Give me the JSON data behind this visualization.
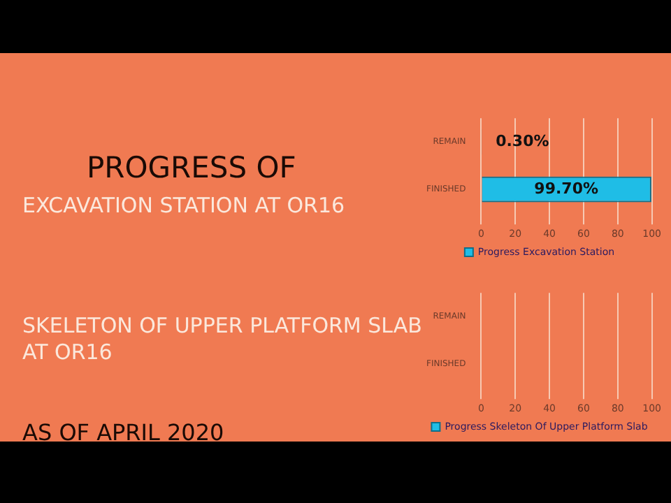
{
  "chart_data": [
    {
      "type": "other",
      "title": "PROGRESS OF",
      "annotations": [
        "AS OF APRIL 2020"
      ]
    },
    {
      "type": "bar",
      "title": "EXCAVATION STATION AT OR16",
      "orientation": "horizontal",
      "categories": [
        "REMAIN",
        "FINISHED"
      ],
      "series": [
        {
          "name": "Progress Excavation Station",
          "color": "#1fbde6",
          "values": [
            0.3,
            99.7
          ],
          "value_labels": [
            "0.30%",
            "99.70%"
          ]
        }
      ],
      "xlim": [
        0,
        100
      ],
      "xticks": [
        0,
        20,
        40,
        60,
        80,
        100
      ],
      "grid": "x",
      "legend": "bottom"
    },
    {
      "type": "bar",
      "title": "SKELETON OF UPPER PLATFORM SLAB AT OR16",
      "orientation": "horizontal",
      "categories": [
        "REMAIN",
        "FINISHED"
      ],
      "series": [
        {
          "name": "Progress Skeleton Of Upper Platform Slab",
          "color": "#1fbde6",
          "values": [
            null,
            null
          ]
        }
      ],
      "xlim": [
        0,
        100
      ],
      "xticks": [
        0,
        20,
        40,
        60,
        80,
        100
      ],
      "grid": "x",
      "legend": "bottom"
    }
  ]
}
